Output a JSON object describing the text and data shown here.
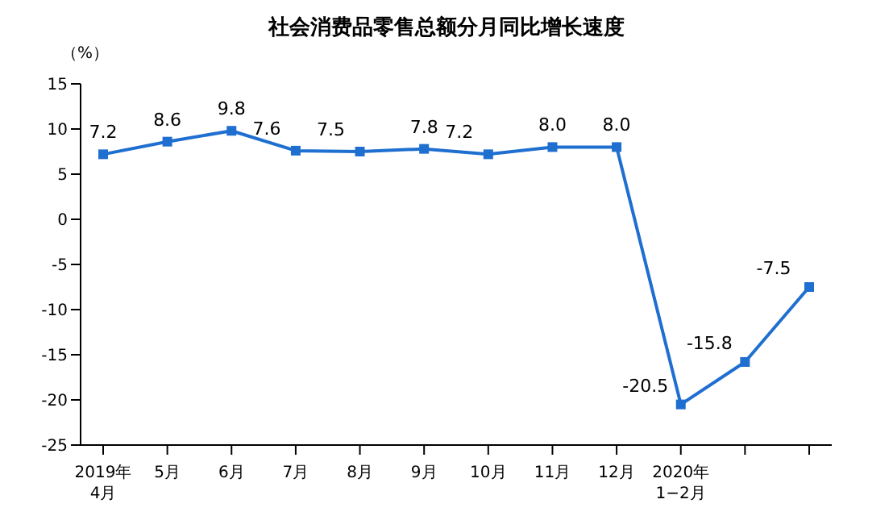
{
  "chart_data": {
    "type": "line",
    "title": "社会消费品零售总额分月同比增长速度",
    "ylabel": "（%）",
    "categories": [
      "2019年\n4月",
      "5月",
      "6月",
      "7月",
      "8月",
      "9月",
      "10月",
      "11月",
      "12月",
      "2020年\n1−2月",
      null,
      null
    ],
    "series": [
      {
        "color": "#1f6fd0",
        "values": [
          7.2,
          8.6,
          9.8,
          7.6,
          7.5,
          7.8,
          7.2,
          8.0,
          8.0,
          -20.5,
          -15.8,
          -7.5
        ],
        "value_labels": [
          "7.2",
          "8.6",
          "9.8",
          "7.6",
          "7.5",
          "7.8",
          "7.2",
          "8.0",
          "8.0",
          "-20.5",
          "-15.8",
          "-7.5"
        ]
      }
    ],
    "ylim": [
      -25,
      15
    ],
    "yticks": [
      -25,
      -20,
      -15,
      -10,
      -5,
      0,
      5,
      10,
      15
    ],
    "marker": "square",
    "line_style": "solid"
  }
}
